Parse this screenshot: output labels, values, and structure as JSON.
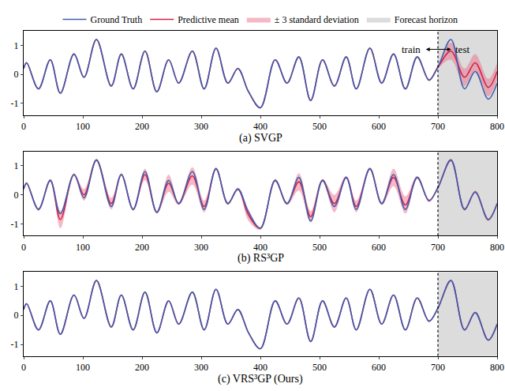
{
  "chart_data": [
    {
      "type": "line",
      "title": "(a) SVGP",
      "legend": "top",
      "x": [
        0,
        5,
        25,
        45,
        62,
        85,
        102,
        123,
        148,
        165,
        185,
        205,
        225,
        245,
        262,
        285,
        305,
        325,
        345,
        362,
        380,
        400,
        425,
        445,
        465,
        485,
        505,
        525,
        545,
        562,
        585,
        605,
        625,
        645,
        665,
        685,
        700,
        722,
        745,
        763,
        785,
        800
      ],
      "series": [
        {
          "name": "Ground Truth",
          "color": "#3d5fae",
          "values": [
            0.2,
            0.4,
            -0.5,
            0.5,
            -0.65,
            0.7,
            -0.1,
            1.2,
            -0.4,
            0.7,
            -0.5,
            0.8,
            -0.6,
            0.5,
            -0.3,
            0.8,
            -0.5,
            0.9,
            -0.3,
            0.2,
            -0.6,
            -1.15,
            0.5,
            -0.3,
            0.6,
            -0.9,
            0.5,
            -0.4,
            0.6,
            -0.5,
            0.9,
            -0.3,
            0.7,
            -0.5,
            0.6,
            -0.2,
            0.25,
            1.2,
            -0.5,
            0.1,
            -0.85,
            -0.3
          ]
        },
        {
          "name": "Predictive mean",
          "color": "#d8204c",
          "values": [
            0.2,
            0.4,
            -0.5,
            0.5,
            -0.65,
            0.7,
            -0.1,
            1.2,
            -0.4,
            0.7,
            -0.5,
            0.8,
            -0.6,
            0.5,
            -0.3,
            0.8,
            -0.5,
            0.9,
            -0.3,
            0.2,
            -0.6,
            -1.15,
            0.5,
            -0.3,
            0.6,
            -0.9,
            0.5,
            -0.4,
            0.6,
            -0.5,
            0.9,
            -0.3,
            0.7,
            -0.5,
            0.6,
            -0.2,
            0.25,
            0.8,
            -0.1,
            0.4,
            -0.45,
            0.1
          ]
        }
      ],
      "band": {
        "name": "± 3 standard deviation",
        "color": "#e8637f",
        "lower": [
          0.17,
          0.37,
          -0.53,
          0.47,
          -0.68,
          0.67,
          -0.13,
          1.17,
          -0.43,
          0.67,
          -0.53,
          0.77,
          -0.63,
          0.47,
          -0.33,
          0.77,
          -0.53,
          0.87,
          -0.33,
          0.17,
          -0.63,
          -1.18,
          0.47,
          -0.33,
          0.57,
          -0.93,
          0.47,
          -0.43,
          0.57,
          -0.53,
          0.87,
          -0.33,
          0.67,
          -0.53,
          0.57,
          -0.23,
          0.2,
          0.5,
          -0.4,
          0.1,
          -0.75,
          -0.2
        ],
        "upper": [
          0.23,
          0.43,
          -0.47,
          0.53,
          -0.62,
          0.73,
          -0.07,
          1.23,
          -0.37,
          0.73,
          -0.47,
          0.83,
          -0.57,
          0.53,
          -0.27,
          0.83,
          -0.47,
          0.93,
          -0.27,
          0.23,
          -0.57,
          -1.12,
          0.53,
          -0.27,
          0.63,
          -0.87,
          0.53,
          -0.37,
          0.63,
          -0.47,
          0.93,
          -0.27,
          0.73,
          -0.47,
          0.63,
          -0.17,
          0.3,
          1.1,
          0.2,
          0.7,
          -0.15,
          0.4
        ]
      },
      "forecast_horizon": {
        "name": "Forecast horizon",
        "color": "#dcdcdc",
        "range": [
          700,
          800
        ]
      },
      "annotations": [
        "train",
        "test"
      ],
      "xlim": [
        0,
        800
      ],
      "ylim": [
        -1.4,
        1.5
      ],
      "xticks": [
        0,
        100,
        200,
        300,
        400,
        500,
        600,
        700,
        800
      ],
      "yticks": [
        -1,
        0,
        1
      ]
    },
    {
      "type": "line",
      "title": "(b) RS³GP",
      "x": [
        0,
        5,
        25,
        45,
        62,
        85,
        102,
        123,
        148,
        165,
        185,
        205,
        225,
        245,
        262,
        285,
        305,
        325,
        345,
        362,
        380,
        400,
        425,
        445,
        465,
        485,
        505,
        525,
        545,
        562,
        585,
        605,
        625,
        645,
        665,
        685,
        700,
        722,
        745,
        763,
        785,
        800
      ],
      "series": [
        {
          "name": "Ground Truth",
          "color": "#3d5fae",
          "values": [
            0.2,
            0.4,
            -0.5,
            0.5,
            -0.65,
            0.7,
            -0.1,
            1.2,
            -0.4,
            0.7,
            -0.5,
            0.8,
            -0.6,
            0.5,
            -0.3,
            0.8,
            -0.5,
            0.9,
            -0.3,
            0.2,
            -0.6,
            -1.15,
            0.5,
            -0.3,
            0.6,
            -0.9,
            0.5,
            -0.4,
            0.6,
            -0.5,
            0.9,
            -0.3,
            0.7,
            -0.5,
            0.6,
            -0.2,
            0.25,
            1.2,
            -0.5,
            0.1,
            -0.85,
            -0.3
          ]
        },
        {
          "name": "Predictive mean",
          "color": "#d8204c",
          "values": [
            0.2,
            0.4,
            -0.5,
            0.5,
            -0.85,
            0.7,
            0.0,
            1.2,
            -0.3,
            0.7,
            -0.5,
            0.7,
            -0.6,
            0.4,
            -0.3,
            0.65,
            -0.4,
            0.9,
            -0.3,
            0.2,
            -0.7,
            -1.15,
            0.5,
            -0.3,
            0.45,
            -0.75,
            0.5,
            -0.3,
            0.6,
            -0.4,
            0.9,
            -0.3,
            0.6,
            -0.35,
            0.6,
            -0.2,
            0.25,
            1.2,
            -0.5,
            0.1,
            -0.85,
            -0.3
          ]
        }
      ],
      "band": {
        "name": "± 3 standard deviation",
        "color": "#e8637f",
        "lower": [
          0.15,
          0.35,
          -0.55,
          0.45,
          -1.15,
          0.65,
          -0.2,
          1.15,
          -0.5,
          0.65,
          -0.55,
          0.5,
          -0.65,
          0.1,
          -0.35,
          0.35,
          -0.6,
          0.85,
          -0.35,
          0.15,
          -0.9,
          -1.2,
          0.45,
          -0.35,
          0.15,
          -0.95,
          0.45,
          -0.6,
          0.55,
          -0.6,
          0.85,
          -0.35,
          0.3,
          -0.65,
          0.55,
          -0.25,
          0.2,
          1.15,
          -0.55,
          0.05,
          -0.9,
          -0.35
        ],
        "upper": [
          0.25,
          0.45,
          -0.45,
          0.55,
          -0.55,
          0.75,
          0.2,
          1.25,
          -0.1,
          0.75,
          -0.45,
          0.9,
          -0.55,
          0.7,
          -0.25,
          0.95,
          -0.2,
          0.95,
          -0.25,
          0.25,
          -0.5,
          -1.1,
          0.55,
          -0.25,
          0.75,
          -0.55,
          0.55,
          0.0,
          0.65,
          -0.2,
          0.95,
          -0.25,
          0.9,
          -0.05,
          0.65,
          -0.15,
          0.3,
          1.25,
          -0.45,
          0.15,
          -0.8,
          -0.25
        ]
      },
      "forecast_horizon": {
        "name": "Forecast horizon",
        "color": "#dcdcdc",
        "range": [
          700,
          800
        ]
      },
      "xlim": [
        0,
        800
      ],
      "ylim": [
        -1.4,
        1.5
      ],
      "xticks": [
        0,
        100,
        200,
        300,
        400,
        500,
        600,
        700,
        800
      ],
      "yticks": [
        -1,
        0,
        1
      ]
    },
    {
      "type": "line",
      "title": "(c) VRS³GP (Ours)",
      "x": [
        0,
        5,
        25,
        45,
        62,
        85,
        102,
        123,
        148,
        165,
        185,
        205,
        225,
        245,
        262,
        285,
        305,
        325,
        345,
        362,
        380,
        400,
        425,
        445,
        465,
        485,
        505,
        525,
        545,
        562,
        585,
        605,
        625,
        645,
        665,
        685,
        700,
        722,
        745,
        763,
        785,
        800
      ],
      "series": [
        {
          "name": "Ground Truth",
          "color": "#3d5fae",
          "values": [
            0.2,
            0.4,
            -0.5,
            0.5,
            -0.65,
            0.7,
            -0.1,
            1.2,
            -0.4,
            0.7,
            -0.5,
            0.8,
            -0.6,
            0.5,
            -0.3,
            0.8,
            -0.5,
            0.9,
            -0.3,
            0.2,
            -0.6,
            -1.15,
            0.5,
            -0.3,
            0.6,
            -0.9,
            0.5,
            -0.4,
            0.6,
            -0.5,
            0.9,
            -0.3,
            0.7,
            -0.5,
            0.6,
            -0.2,
            0.25,
            1.2,
            -0.5,
            0.1,
            -0.85,
            -0.3
          ]
        },
        {
          "name": "Predictive mean",
          "color": "#d8204c",
          "values": [
            0.2,
            0.4,
            -0.5,
            0.5,
            -0.65,
            0.7,
            -0.1,
            1.2,
            -0.4,
            0.7,
            -0.5,
            0.8,
            -0.6,
            0.5,
            -0.3,
            0.8,
            -0.5,
            0.9,
            -0.3,
            0.2,
            -0.6,
            -1.15,
            0.5,
            -0.3,
            0.6,
            -0.9,
            0.5,
            -0.4,
            0.6,
            -0.5,
            0.9,
            -0.3,
            0.7,
            -0.5,
            0.6,
            -0.2,
            0.25,
            1.2,
            -0.5,
            0.1,
            -0.85,
            -0.3
          ]
        }
      ],
      "band": {
        "name": "± 3 standard deviation",
        "color": "#e8637f",
        "lower": [
          0.19,
          0.39,
          -0.51,
          0.49,
          -0.66,
          0.69,
          -0.11,
          1.19,
          -0.41,
          0.69,
          -0.51,
          0.79,
          -0.61,
          0.49,
          -0.31,
          0.79,
          -0.51,
          0.89,
          -0.31,
          0.19,
          -0.61,
          -1.16,
          0.49,
          -0.31,
          0.59,
          -0.91,
          0.49,
          -0.41,
          0.59,
          -0.51,
          0.89,
          -0.31,
          0.69,
          -0.51,
          0.59,
          -0.21,
          0.24,
          1.19,
          -0.51,
          0.09,
          -0.86,
          -0.31
        ],
        "upper": [
          0.21,
          0.41,
          -0.49,
          0.51,
          -0.64,
          0.71,
          -0.09,
          1.21,
          -0.39,
          0.71,
          -0.49,
          0.81,
          -0.59,
          0.51,
          -0.29,
          0.81,
          -0.49,
          0.91,
          -0.29,
          0.21,
          -0.59,
          -1.14,
          0.51,
          -0.29,
          0.61,
          -0.89,
          0.51,
          -0.39,
          0.61,
          -0.49,
          0.91,
          -0.29,
          0.71,
          -0.49,
          0.61,
          -0.19,
          0.26,
          1.21,
          -0.49,
          0.11,
          -0.84,
          -0.29
        ]
      },
      "forecast_horizon": {
        "name": "Forecast horizon",
        "color": "#dcdcdc",
        "range": [
          700,
          800
        ]
      },
      "xlim": [
        0,
        800
      ],
      "ylim": [
        -1.4,
        1.5
      ],
      "xticks": [
        0,
        100,
        200,
        300,
        400,
        500,
        600,
        700,
        800
      ],
      "yticks": [
        -1,
        0,
        1
      ]
    }
  ]
}
